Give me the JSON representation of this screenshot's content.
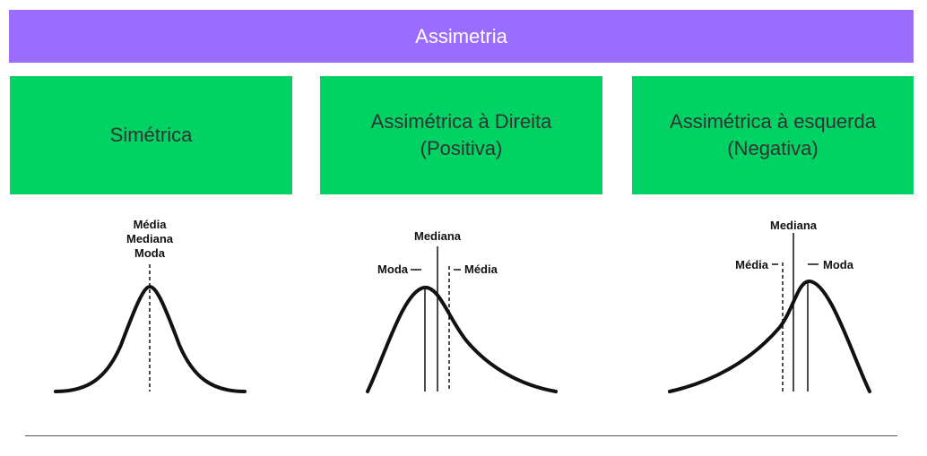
{
  "banner": {
    "title": "Assimetria"
  },
  "cards": [
    {
      "lines": [
        "Simétrica"
      ]
    },
    {
      "lines": [
        "Assimétrica à Direita",
        "(Positiva)"
      ]
    },
    {
      "lines": [
        "Assimétrica à esquerda",
        "(Negativa)"
      ]
    }
  ],
  "diagrams": {
    "symmetric": {
      "labels": [
        "Média",
        "Mediana",
        "Moda"
      ]
    },
    "positive": {
      "mediana": "Mediana",
      "moda": "Moda",
      "media": "Média"
    },
    "negative": {
      "mediana": "Mediana",
      "media": "Média",
      "moda": "Moda"
    }
  },
  "colors": {
    "banner": "#9b6dff",
    "card": "#00d364"
  }
}
